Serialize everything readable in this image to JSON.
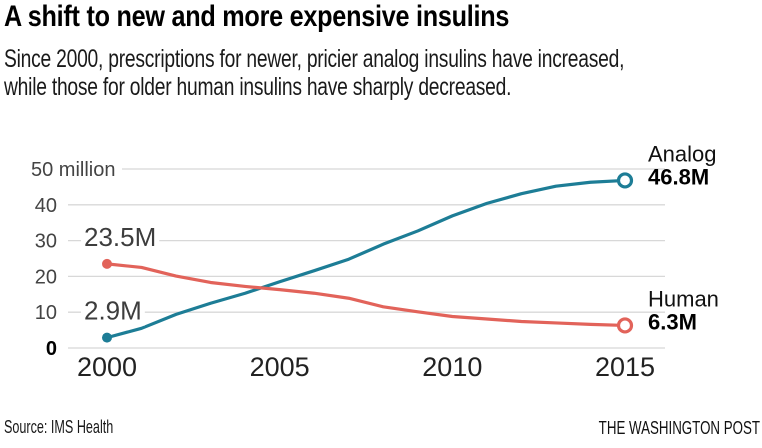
{
  "header": {
    "title": "A shift to new and more expensive insulins",
    "subtitle_line1": "Since 2000, prescriptions for newer, pricier analog insulins have increased,",
    "subtitle_line2": "while those for older human insulins have sharply decreased."
  },
  "footer": {
    "source": "Source: IMS Health",
    "credit": "THE WASHINGTON POST"
  },
  "colors": {
    "analog": "#1d7d96",
    "human": "#e2635a",
    "grid": "#d8d8d8",
    "y_label": "#444444",
    "x_label": "#222222",
    "start_label": "#3d3d3d",
    "end_name": "#111111",
    "end_value": "#000000"
  },
  "chart_data": {
    "type": "line",
    "x": [
      2000,
      2001,
      2002,
      2003,
      2004,
      2005,
      2006,
      2007,
      2008,
      2009,
      2010,
      2011,
      2012,
      2013,
      2014,
      2015
    ],
    "series": [
      {
        "name": "Analog",
        "color_key": "analog",
        "values": [
          2.9,
          5.5,
          9.4,
          12.5,
          15.3,
          18.5,
          21.6,
          24.8,
          29.0,
          32.7,
          36.9,
          40.4,
          43.1,
          45.2,
          46.3,
          46.8
        ],
        "start_label": "2.9M",
        "end_label": "46.8M"
      },
      {
        "name": "Human",
        "color_key": "human",
        "values": [
          23.5,
          22.5,
          20.1,
          18.3,
          17.2,
          16.3,
          15.3,
          13.9,
          11.5,
          10.1,
          8.8,
          8.1,
          7.4,
          7.0,
          6.6,
          6.3
        ],
        "start_label": "23.5M",
        "end_label": "6.3M"
      }
    ],
    "y_axis": {
      "ticks": [
        0,
        10,
        20,
        30,
        40,
        50
      ],
      "top_tick_label": "50 million",
      "ylim": [
        0,
        50
      ],
      "grid": true
    },
    "x_axis": {
      "ticks": [
        2000,
        2005,
        2010,
        2015
      ],
      "xlim": [
        2000,
        2015
      ]
    },
    "legend": "inline-end-labels"
  }
}
